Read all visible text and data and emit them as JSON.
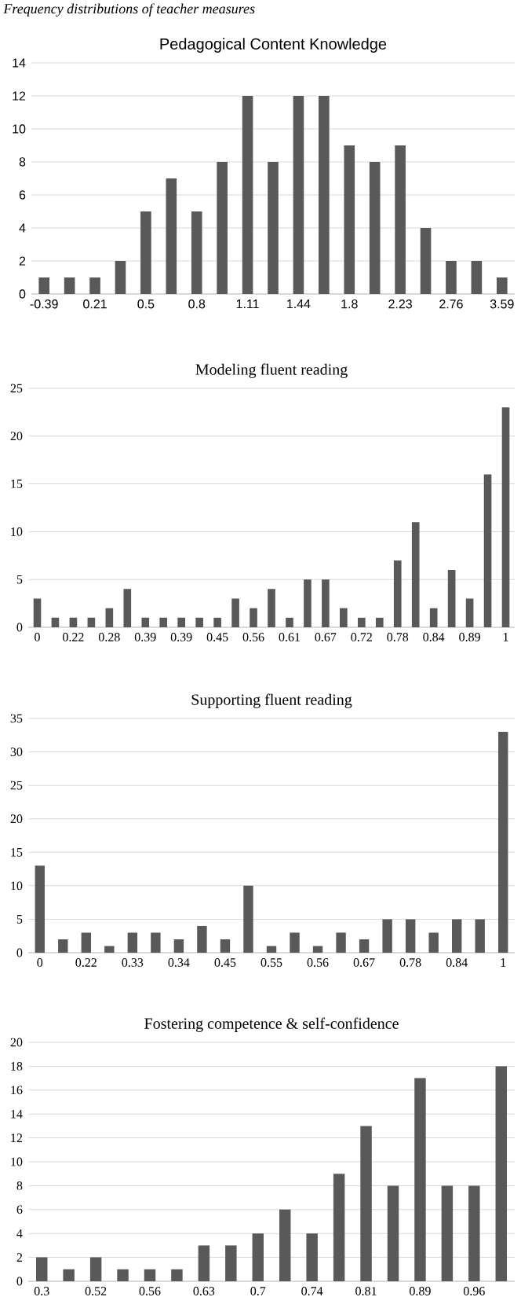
{
  "chart_data": [
    {
      "type": "bar",
      "title": "Pedagogical Content Knowledge",
      "annotations": [
        "*Frequency distributions of teacher measures*"
      ],
      "categories": [
        "-0.39",
        null,
        "0.21",
        null,
        "0.5",
        null,
        "0.8",
        null,
        "1.11",
        null,
        "1.44",
        null,
        "1.8",
        null,
        "2.23",
        null,
        "2.76",
        null,
        "3.59"
      ],
      "values": [
        1,
        1,
        1,
        2,
        5,
        7,
        5,
        8,
        12,
        8,
        12,
        12,
        9,
        8,
        9,
        4,
        2,
        2,
        1
      ],
      "color": "#595959",
      "ylim": [
        0,
        14
      ],
      "yticks": [
        0,
        2,
        4,
        6,
        8,
        10,
        12,
        14
      ],
      "grid": "y"
    },
    {
      "type": "bar",
      "title": "Modeling fluent reading",
      "categories": [
        "0",
        null,
        "0.22",
        null,
        "0.28",
        null,
        "0.39",
        null,
        "0.39",
        null,
        "0.45",
        null,
        "0.56",
        null,
        "0.61",
        null,
        "0.67",
        null,
        "0.72",
        null,
        "0.78",
        null,
        "0.84",
        null,
        "0.89",
        null,
        "1"
      ],
      "values": [
        3,
        1,
        1,
        1,
        2,
        4,
        1,
        1,
        1,
        1,
        1,
        3,
        2,
        4,
        1,
        5,
        5,
        2,
        1,
        1,
        7,
        11,
        2,
        6,
        3,
        16,
        23
      ],
      "color": "#595959",
      "ylim": [
        0,
        25
      ],
      "yticks": [
        0,
        5,
        10,
        15,
        20,
        25
      ],
      "grid": "y"
    },
    {
      "type": "bar",
      "title": "Supporting fluent reading",
      "categories": [
        "0",
        null,
        "0.22",
        null,
        "0.33",
        null,
        "0.34",
        null,
        "0.45",
        null,
        "0.55",
        null,
        "0.56",
        null,
        "0.67",
        null,
        "0.78",
        null,
        "0.84",
        null,
        "1"
      ],
      "values": [
        13,
        2,
        3,
        1,
        3,
        3,
        2,
        4,
        2,
        10,
        1,
        3,
        1,
        3,
        2,
        5,
        5,
        3,
        5,
        5,
        33
      ],
      "color": "#595959",
      "ylim": [
        0,
        35
      ],
      "yticks": [
        0,
        5,
        10,
        15,
        20,
        25,
        30,
        35
      ],
      "grid": "y"
    },
    {
      "type": "bar",
      "title": "Fostering competence & self-confidence",
      "categories": [
        "0.3",
        null,
        "0.52",
        null,
        "0.56",
        null,
        "0.63",
        null,
        "0.7",
        null,
        "0.74",
        null,
        "0.81",
        null,
        "0.89",
        null,
        "0.96",
        null
      ],
      "values": [
        2,
        1,
        2,
        1,
        1,
        1,
        3,
        3,
        4,
        6,
        4,
        9,
        13,
        8,
        17,
        8,
        8,
        18
      ],
      "color": "#595959",
      "ylim": [
        0,
        20
      ],
      "yticks": [
        0,
        2,
        4,
        6,
        8,
        10,
        12,
        14,
        16,
        18,
        20
      ],
      "grid": "y"
    }
  ]
}
